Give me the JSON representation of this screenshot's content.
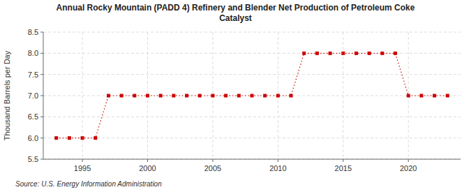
{
  "chart_data": {
    "type": "line",
    "title": "Annual Rocky Mountain (PADD 4) Refinery and Blender Net Production of Petroleum Coke\nCatalyst",
    "y_label": "Thousand Barrels per Day",
    "annotations": [
      "Source: U.S. Energy Information Administration"
    ],
    "x": [
      1993,
      1994,
      1995,
      1996,
      1997,
      1998,
      1999,
      2000,
      2001,
      2002,
      2003,
      2004,
      2005,
      2006,
      2007,
      2008,
      2009,
      2010,
      2011,
      2012,
      2013,
      2014,
      2015,
      2016,
      2017,
      2018,
      2019,
      2020,
      2021,
      2022,
      2023
    ],
    "values": [
      6.0,
      6.0,
      6.0,
      6.0,
      7.0,
      7.0,
      7.0,
      7.0,
      7.0,
      7.0,
      7.0,
      7.0,
      7.0,
      7.0,
      7.0,
      7.0,
      7.0,
      7.0,
      7.0,
      8.0,
      8.0,
      8.0,
      8.0,
      8.0,
      8.0,
      8.0,
      8.0,
      7.0,
      7.0,
      7.0,
      7.0
    ],
    "color": "#cc0000",
    "marker": "square",
    "line_style": "dotted",
    "xlim": [
      1992.0,
      2024.0
    ],
    "xticks": [
      1995,
      2000,
      2005,
      2010,
      2015,
      2020
    ],
    "ylim": [
      5.5,
      8.5
    ],
    "yticks": [
      5.5,
      {
        "value": 6.0,
        "label": "6.0"
      },
      6.5,
      {
        "value": 7.0,
        "label": "7.0"
      },
      7.5,
      {
        "value": 8.0,
        "label": "8.0"
      },
      8.5
    ],
    "grid": true
  }
}
